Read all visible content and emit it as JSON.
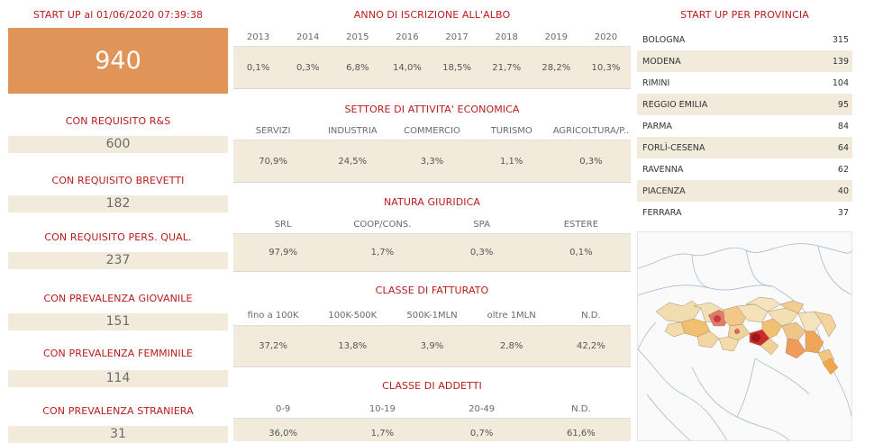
{
  "left": {
    "startup_title": "START UP al 01/06/2020 07:39:38",
    "total": "940",
    "requirements": [
      {
        "label": "CON REQUISITO R&S",
        "value": "600"
      },
      {
        "label": "CON REQUISITO BREVETTI",
        "value": "182"
      },
      {
        "label": "CON REQUISITO PERS. QUAL.",
        "value": "237"
      },
      {
        "label": "CON PREVALENZA GIOVANILE",
        "value": "151"
      },
      {
        "label": "CON PREVALENZA FEMMINILE",
        "value": "114"
      },
      {
        "label": "CON PREVALENZA STRANIERA",
        "value": "31"
      }
    ]
  },
  "middle": {
    "anno": {
      "title": "ANNO DI ISCRIZIONE ALL'ALBO",
      "headers": [
        "2013",
        "2014",
        "2015",
        "2016",
        "2017",
        "2018",
        "2019",
        "2020"
      ],
      "values": [
        "0,1%",
        "0,3%",
        "6,8%",
        "14,0%",
        "18,5%",
        "21,7%",
        "28,2%",
        "10,3%"
      ]
    },
    "settore": {
      "title": "SETTORE DI ATTIVITA' ECONOMICA",
      "headers": [
        "SERVIZI",
        "INDUSTRIA",
        "COMMERCIO",
        "TURISMO",
        "AGRICOLTURA/P.."
      ],
      "values": [
        "70,9%",
        "24,5%",
        "3,3%",
        "1,1%",
        "0,3%"
      ]
    },
    "natura": {
      "title": "NATURA GIURIDICA",
      "headers": [
        "SRL",
        "COOP/CONS.",
        "SPA",
        "ESTERE"
      ],
      "values": [
        "97,9%",
        "1,7%",
        "0,3%",
        "0,1%"
      ]
    },
    "fatturato": {
      "title": "CLASSE DI FATTURATO",
      "headers": [
        "fino a 100K",
        "100K-500K",
        "500K-1MLN",
        "oltre 1MLN",
        "N.D."
      ],
      "values": [
        "37,2%",
        "13,8%",
        "3,9%",
        "2,8%",
        "42,2%"
      ]
    },
    "addetti": {
      "title": "CLASSE DI ADDETTI",
      "headers": [
        "0-9",
        "10-19",
        "20-49",
        "N.D."
      ],
      "values": [
        "36,0%",
        "1,7%",
        "0,7%",
        "61,6%"
      ]
    }
  },
  "right": {
    "title": "START UP PER PROVINCIA",
    "provinces": [
      {
        "name": "BOLOGNA",
        "value": "315"
      },
      {
        "name": "MODENA",
        "value": "139"
      },
      {
        "name": "RIMINI",
        "value": "104"
      },
      {
        "name": "REGGIO EMILIA",
        "value": "95"
      },
      {
        "name": "PARMA",
        "value": "84"
      },
      {
        "name": "FORLÌ-CESENA",
        "value": "64"
      },
      {
        "name": "RAVENNA",
        "value": "62"
      },
      {
        "name": "PIACENZA",
        "value": "40"
      },
      {
        "name": "FERRARA",
        "value": "37"
      }
    ]
  },
  "colors": {
    "accent_red": "#b81c1c",
    "total_box": "#e19458",
    "value_band": "#f2ebdc"
  }
}
